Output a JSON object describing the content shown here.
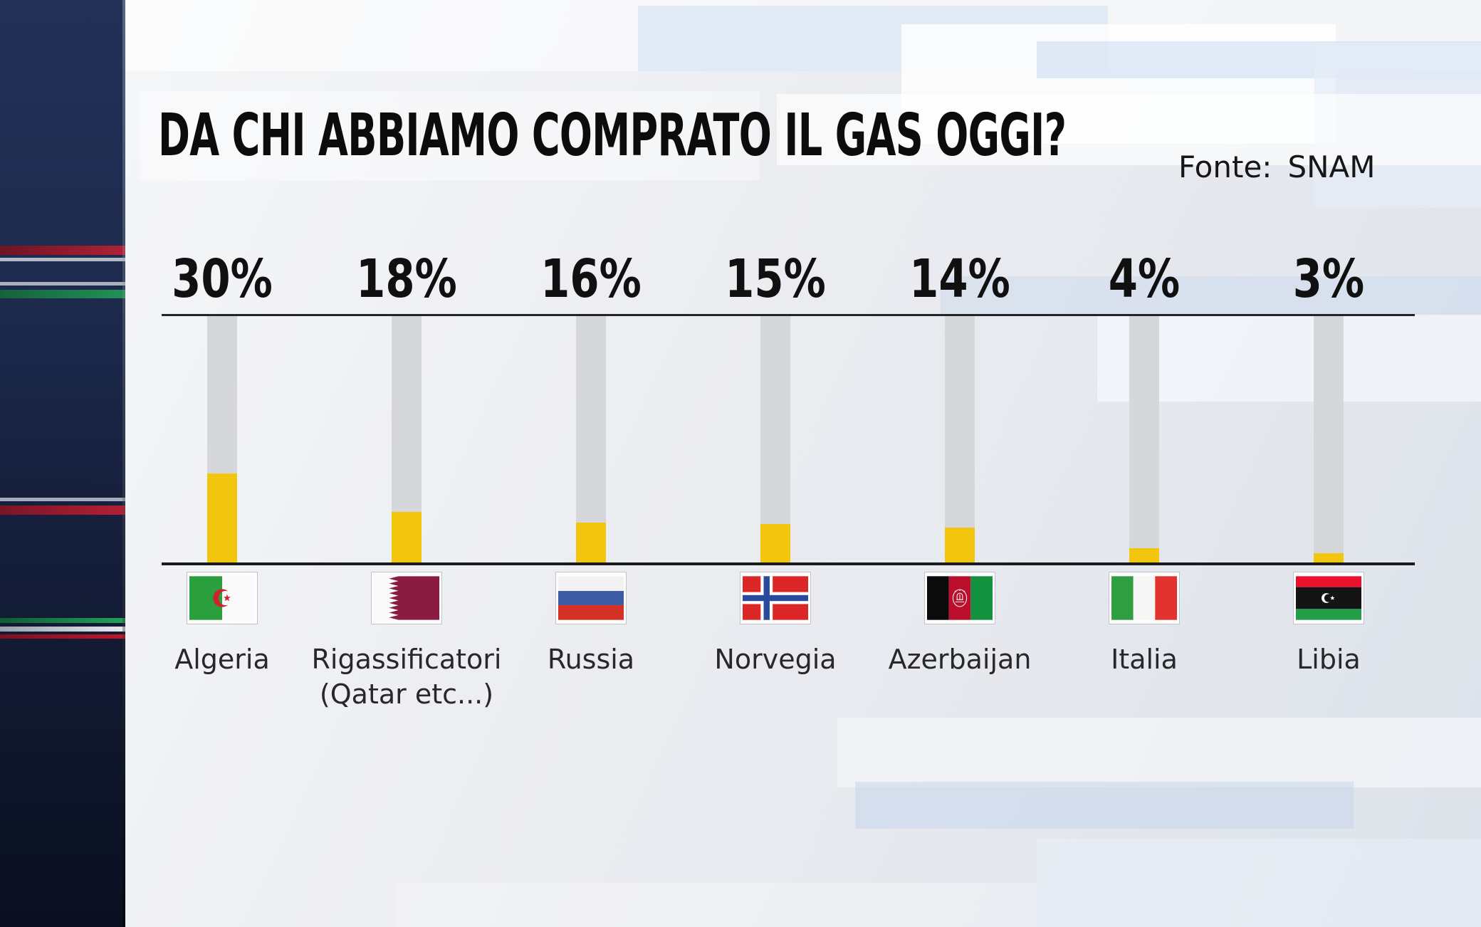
{
  "header": {
    "title": "DA CHI ABBIAMO COMPRATO IL GAS OGGI?",
    "source_label": "Fonte:",
    "source_value": "SNAM"
  },
  "chart_data": {
    "type": "bar",
    "title": "DA CHI ABBIAMO COMPRATO IL GAS OGGI?",
    "source": "SNAM",
    "unit": "percent",
    "orientation": "vertical-gauge",
    "grid": false,
    "legend": false,
    "ylim": [
      0,
      100
    ],
    "categories": [
      "Algeria",
      "Rigassificatori (Qatar etc...)",
      "Russia",
      "Norvegia",
      "Azerbaijan",
      "Italia",
      "Libia"
    ],
    "values": [
      30,
      18,
      16,
      15,
      14,
      4,
      3
    ],
    "items": [
      {
        "value": 30,
        "value_label": "30%",
        "label_lines": [
          "Algeria"
        ],
        "flag": "flag-algeria",
        "fill_fraction": 0.361
      },
      {
        "value": 18,
        "value_label": "18%",
        "label_lines": [
          "Rigassificatori",
          "(Qatar etc...)"
        ],
        "flag": "flag-qatar",
        "fill_fraction": 0.205
      },
      {
        "value": 16,
        "value_label": "16%",
        "label_lines": [
          "Russia"
        ],
        "flag": "flag-russia",
        "fill_fraction": 0.162
      },
      {
        "value": 15,
        "value_label": "15%",
        "label_lines": [
          "Norvegia"
        ],
        "flag": "flag-norway",
        "fill_fraction": 0.156
      },
      {
        "value": 14,
        "value_label": "14%",
        "label_lines": [
          "Azerbaijan"
        ],
        "flag": "flag-afghanistan",
        "fill_fraction": 0.142
      },
      {
        "value": 4,
        "value_label": "4%",
        "label_lines": [
          "Italia"
        ],
        "flag": "flag-italy",
        "fill_fraction": 0.058
      },
      {
        "value": 3,
        "value_label": "3%",
        "label_lines": [
          "Libia"
        ],
        "flag": "flag-libya",
        "fill_fraction": 0.038
      }
    ],
    "colors": {
      "bar_fill": "#f2c50e",
      "bar_track": "#d6d7da",
      "axis_line": "#1a1b1d",
      "sidebar_navy": "#1c2948",
      "stripe_red": "#b02136",
      "stripe_green": "#1f8f52"
    }
  }
}
